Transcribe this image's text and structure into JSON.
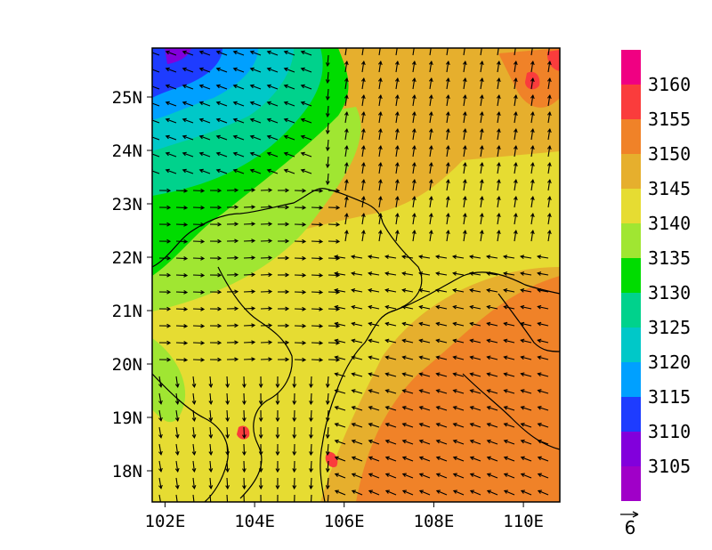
{
  "map": {
    "lon_range": [
      101.7,
      110.8
    ],
    "lat_range": [
      17.4,
      25.9
    ],
    "x_ticks": [
      {
        "value": 102,
        "label": "102E"
      },
      {
        "value": 104,
        "label": "104E"
      },
      {
        "value": 106,
        "label": "106E"
      },
      {
        "value": 108,
        "label": "108E"
      },
      {
        "value": 110,
        "label": "110E"
      }
    ],
    "y_ticks": [
      {
        "value": 18,
        "label": "18N"
      },
      {
        "value": 19,
        "label": "19N"
      },
      {
        "value": 20,
        "label": "20N"
      },
      {
        "value": 21,
        "label": "21N"
      },
      {
        "value": 22,
        "label": "22N"
      },
      {
        "value": 23,
        "label": "23N"
      },
      {
        "value": 24,
        "label": "24N"
      },
      {
        "value": 25,
        "label": "25N"
      }
    ],
    "field": "filled contours with wind vectors",
    "grid": false
  },
  "colorbar": {
    "labels": [
      "3105",
      "3110",
      "3115",
      "3120",
      "3125",
      "3130",
      "3135",
      "3140",
      "3145",
      "3150",
      "3155",
      "3160"
    ],
    "colors": [
      "#a000c8",
      "#8200dc",
      "#1e3cff",
      "#00a0ff",
      "#00c8c8",
      "#00d28c",
      "#00dc00",
      "#a0e632",
      "#e6dc32",
      "#e6af2d",
      "#f08228",
      "#fa3c3c",
      "#f00082"
    ]
  },
  "reference_vector": {
    "label": "6"
  }
}
